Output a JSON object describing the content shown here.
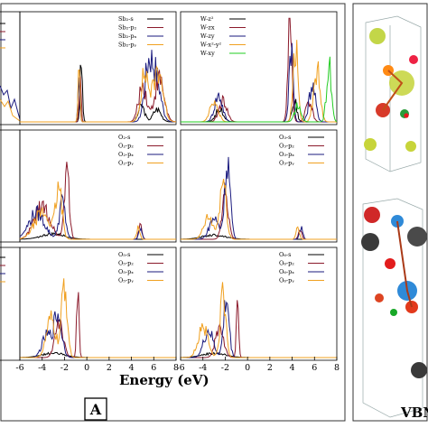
{
  "figure": {
    "panel_a_label": "A",
    "xlabel": "Energy (eV)",
    "structure_caption": "VBN"
  },
  "chart_data": {
    "type": "line",
    "xlim": [
      -6,
      8
    ],
    "x_ticks": [
      "-6",
      "-4",
      "-2",
      "0",
      "2",
      "4",
      "6",
      "8"
    ],
    "panels": [
      {
        "id": "sb2",
        "legend": [
          "Sb₂-s",
          "Sb₂-p₂",
          "Sb₂-pₓ",
          "Sb₂-pᵧ"
        ],
        "colors": [
          "#000000",
          "#8b1a2b",
          "#1a1a7e",
          "#f0a020"
        ]
      },
      {
        "id": "w",
        "legend": [
          "W-z²",
          "W-zx",
          "W-zy",
          "W-x²-y²",
          "W-xy"
        ],
        "colors": [
          "#000000",
          "#8b1a2b",
          "#1a1a7e",
          "#f0a020",
          "#22cc22"
        ]
      },
      {
        "id": "o2",
        "legend": [
          "O₂-s",
          "O₂-p₂",
          "O₂-pₓ",
          "O₂-pᵧ"
        ],
        "colors": [
          "#000000",
          "#8b1a2b",
          "#1a1a7e",
          "#f0a020"
        ]
      },
      {
        "id": "o3",
        "legend": [
          "O₃-s",
          "O₃-p₂",
          "O₃-pₓ",
          "O₃-pᵧ"
        ],
        "colors": [
          "#000000",
          "#8b1a2b",
          "#1a1a7e",
          "#f0a020"
        ]
      },
      {
        "id": "o5",
        "legend": [
          "O₅-s",
          "O₅-p₂",
          "O₅-pₓ",
          "O₅-pᵧ"
        ],
        "colors": [
          "#000000",
          "#8b1a2b",
          "#1a1a7e",
          "#f0a020"
        ]
      },
      {
        "id": "o6",
        "legend": [
          "O₆-s",
          "O₆-p₂",
          "O₆-pₓ",
          "O₆-pᵧ"
        ],
        "colors": [
          "#000000",
          "#8b1a2b",
          "#1a1a7e",
          "#f0a020"
        ]
      }
    ]
  }
}
